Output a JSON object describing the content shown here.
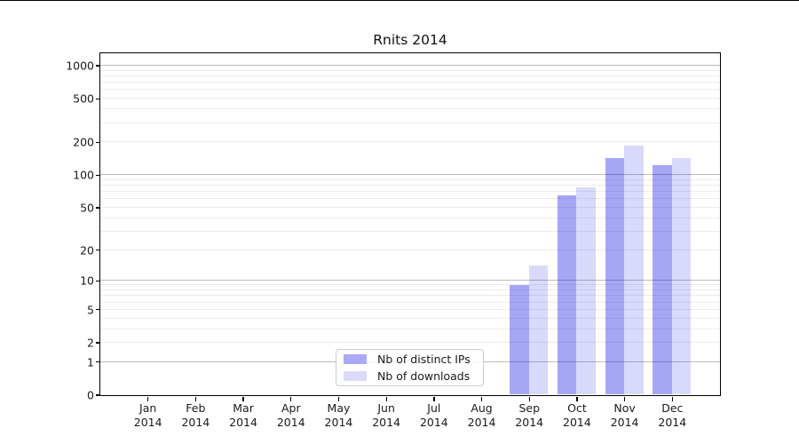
{
  "chart_data": {
    "type": "bar",
    "title": "Rnits 2014",
    "x_axis": {
      "months": [
        "Jan",
        "Feb",
        "Mar",
        "Apr",
        "May",
        "Jun",
        "Jul",
        "Aug",
        "Sep",
        "Oct",
        "Nov",
        "Dec"
      ],
      "year": "2014"
    },
    "y_axis": {
      "scale": "symlog (position ~ log(1+v))",
      "tick_labels": [
        0,
        1,
        2,
        5,
        10,
        20,
        50,
        100,
        200,
        500,
        1000
      ],
      "major_gridlines": [
        1,
        10,
        100,
        1000
      ],
      "minor_gridlines": [
        2,
        3,
        4,
        5,
        6,
        7,
        8,
        9,
        20,
        30,
        40,
        50,
        60,
        70,
        80,
        90,
        200,
        300,
        400,
        500,
        600,
        700,
        800,
        900
      ],
      "ylim": [
        0,
        1300
      ]
    },
    "series": [
      {
        "name": "Nb of distinct IPs",
        "fill": "rgba(0,0,230,0.35)",
        "legend_swatch": "#a9a9f4",
        "values": [
          0,
          0,
          0,
          0,
          0,
          0,
          0,
          0,
          9,
          65,
          142,
          122
        ]
      },
      {
        "name": "Nb of downloads",
        "fill": "rgba(0,0,230,0.15)",
        "legend_swatch": "#d9d9fa",
        "values": [
          0,
          0,
          0,
          0,
          0,
          0,
          0,
          0,
          14,
          77,
          186,
          142
        ]
      }
    ],
    "colors": {
      "major_grid": "#bcbcbc",
      "minor_grid": "#ececec",
      "axis": "#000000",
      "background": "#ffffff"
    },
    "legend_position": "bottom-center inside plot",
    "grid": "horizontal only"
  }
}
